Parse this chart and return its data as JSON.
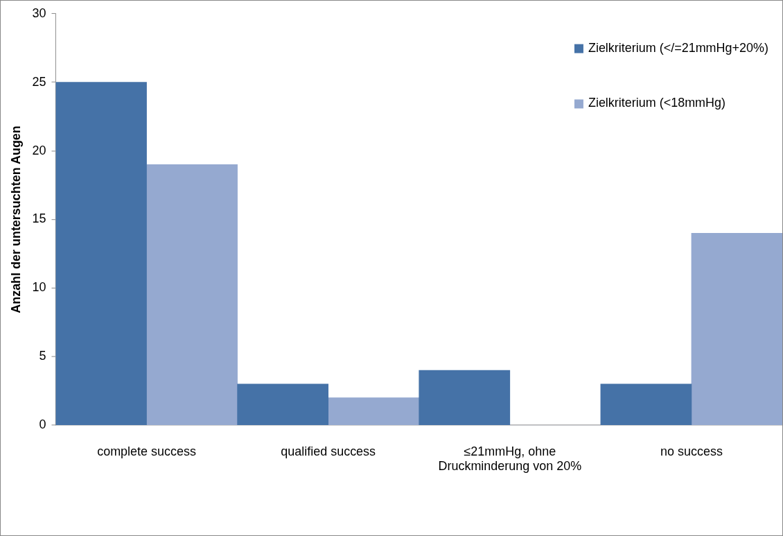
{
  "chart_data": {
    "type": "bar",
    "ylabel": "Anzahl der untersuchten Augen",
    "categories": [
      "complete success",
      "qualified success",
      "≤21mmHg, ohne Druckminderung von 20%",
      "no success"
    ],
    "series": [
      {
        "name": "Zielkriterium (</=21mmHg+20%)",
        "color": "#4572a7",
        "values": [
          25,
          3,
          4,
          3
        ]
      },
      {
        "name": "Zielkriterium (<18mmHg)",
        "color": "#95a9d0",
        "values": [
          19,
          2,
          0,
          14
        ]
      }
    ],
    "ylim": [
      0,
      30
    ],
    "yticks": [
      0,
      5,
      10,
      15,
      20,
      25,
      30
    ],
    "grid": false,
    "legend": "top right"
  }
}
